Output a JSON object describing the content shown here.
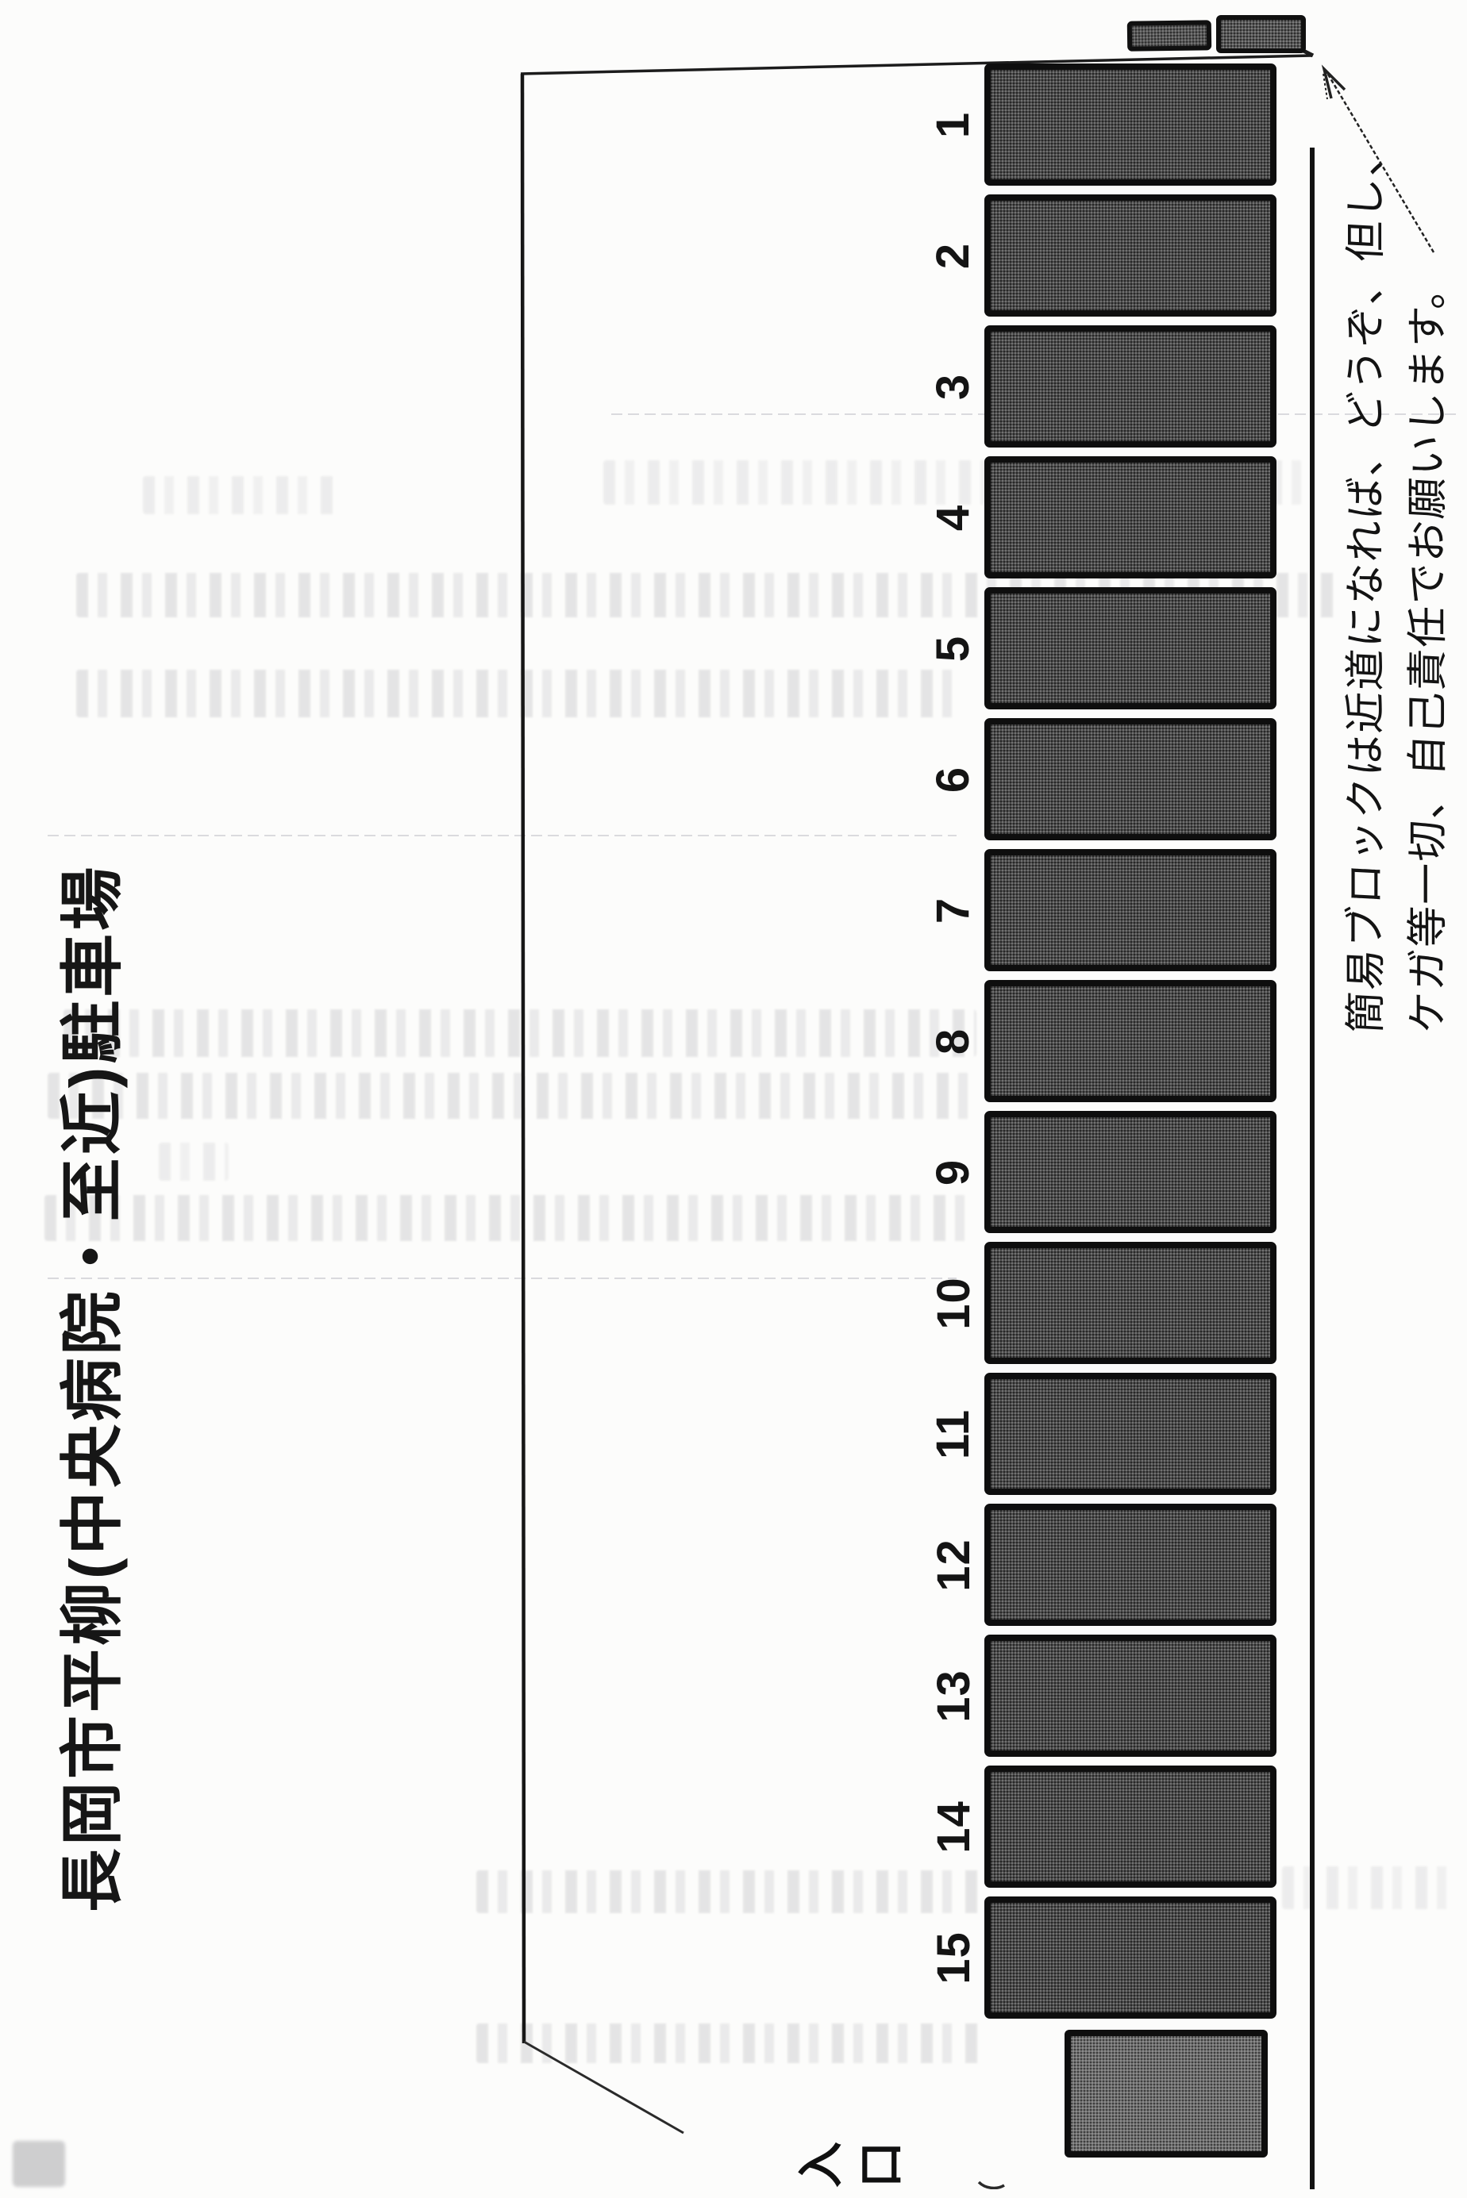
{
  "document": {
    "title": "長岡市平柳(中央病院・至近)駐車場",
    "note": {
      "line1": "簡易ブロックは近道になれば、どうぞ、但し、",
      "line2": "ケガ等一切、自己責任でお願いします。"
    },
    "entrance": {
      "label": "入口",
      "chars": [
        "入",
        "口"
      ]
    },
    "parking": {
      "space_labels": [
        "1",
        "2",
        "3",
        "4",
        "5",
        "6",
        "7",
        "8",
        "9",
        "10",
        "11",
        "12",
        "13",
        "14",
        "15"
      ]
    },
    "icons": {
      "note_arrow": "diagonal-arrow-pointing-to-blocks"
    },
    "colors": {
      "page-bg": "#fcfcfb",
      "ink": "#1a1a1a",
      "stall-fill": "#4b4b4b",
      "stall-border": "#0e0e0e",
      "entrance-fill": "#6f6f6f",
      "block-fill": "#565656",
      "bleed-gray": "#c9c9cc"
    }
  }
}
